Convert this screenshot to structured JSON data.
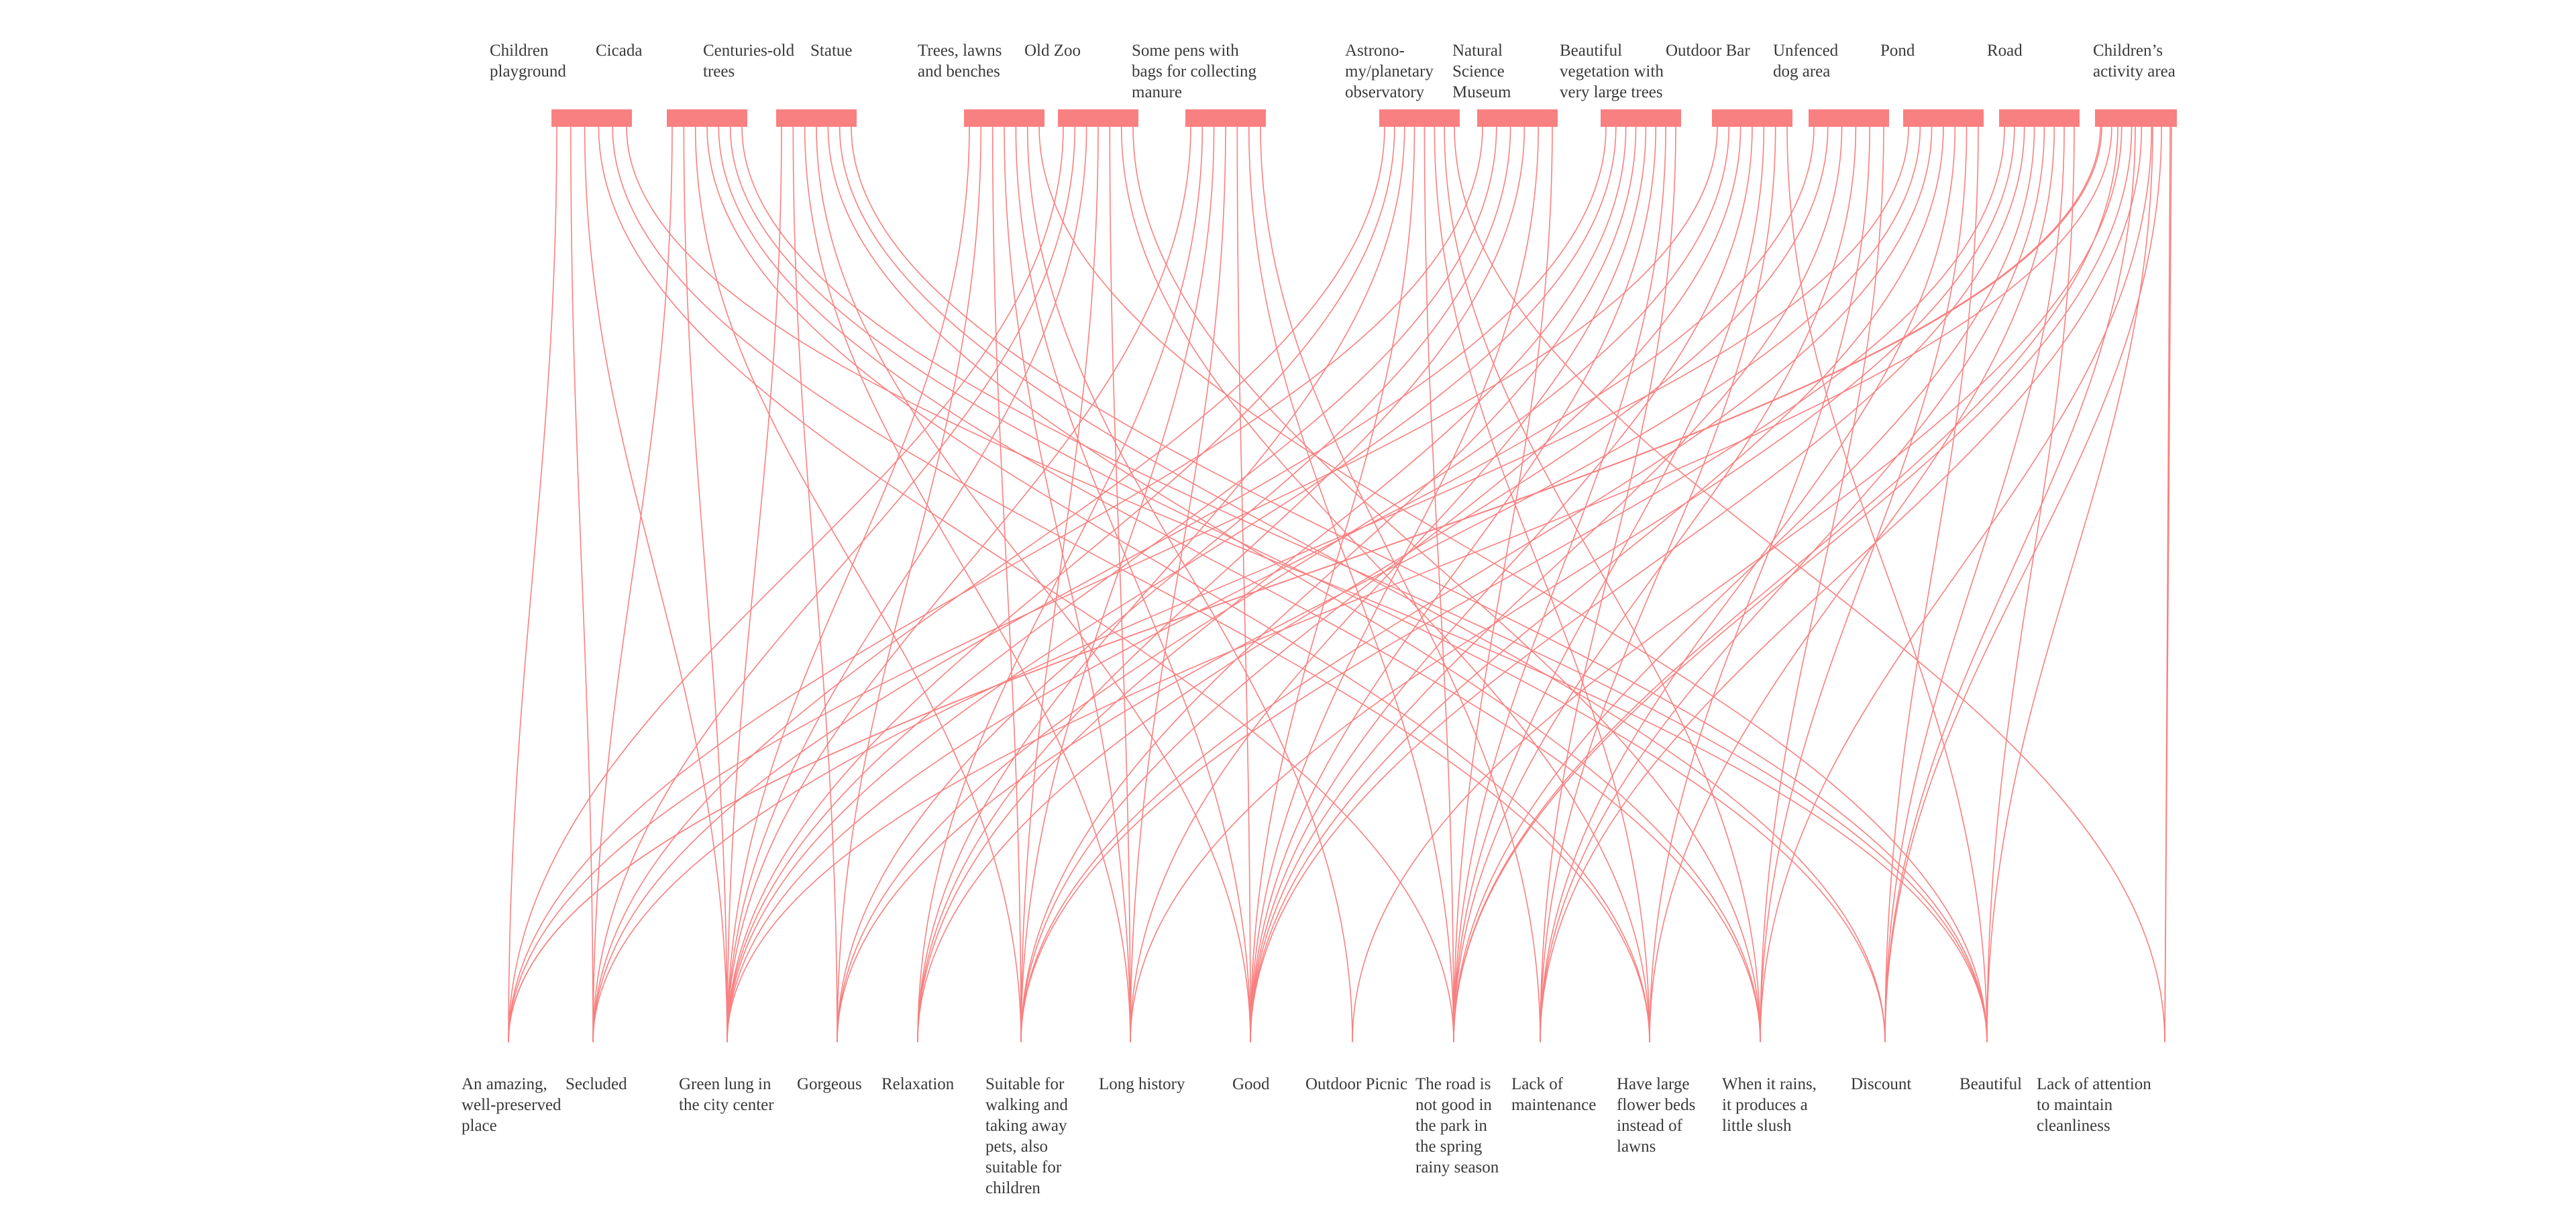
{
  "colors": {
    "accent": "#f98080",
    "text": "#3a3a3a",
    "background": "#ffffff"
  },
  "top_nodes": [
    "Children\nplayground",
    "Cicada",
    "Centuries-old\ntrees",
    "Statue",
    "Trees, lawns\nand benches",
    "Old Zoo",
    "Some pens with\nbags for collecting\nmanure",
    "Astrono-\nmy/planetary\nobservatory",
    "Natural\nScience\nMuseum",
    "Beautiful\nvegetation with\nvery large trees",
    "Outdoor Bar",
    "Unfenced\ndog area",
    "Pond",
    "Road",
    "Children’s\nactivity area"
  ],
  "bottom_nodes": [
    "An amazing,\nwell-preserved\nplace",
    "Secluded",
    "Green lung in\nthe city center",
    "Gorgeous",
    "Relaxation",
    "Suitable for\nwalking and\ntaking away\npets, also\nsuitable for\nchildren",
    "Long history",
    "Good",
    "Outdoor Picnic",
    "The road is\nnot good in\nthe park in\nthe spring\nrainy season",
    "Lack of\nmaintenance",
    "Have large\nflower beds\ninstead of\nlawns",
    "When it rains,\nit produces a\nlittle slush",
    "Discount",
    "Beautiful",
    "Lack of attention\nto maintain\ncleanliness"
  ],
  "links": [
    [
      0,
      0
    ],
    [
      0,
      1
    ],
    [
      0,
      2
    ],
    [
      0,
      9
    ],
    [
      0,
      11
    ],
    [
      0,
      14
    ],
    [
      1,
      1
    ],
    [
      1,
      2
    ],
    [
      1,
      5
    ],
    [
      1,
      11
    ],
    [
      1,
      12
    ],
    [
      1,
      13
    ],
    [
      1,
      14
    ],
    [
      2,
      2
    ],
    [
      2,
      3
    ],
    [
      2,
      6
    ],
    [
      2,
      7
    ],
    [
      2,
      12
    ],
    [
      2,
      13
    ],
    [
      2,
      14
    ],
    [
      3,
      2
    ],
    [
      3,
      3
    ],
    [
      3,
      5
    ],
    [
      3,
      6
    ],
    [
      3,
      7
    ],
    [
      3,
      8
    ],
    [
      3,
      14
    ],
    [
      4,
      0
    ],
    [
      4,
      1
    ],
    [
      4,
      2
    ],
    [
      4,
      5
    ],
    [
      4,
      6
    ],
    [
      4,
      11
    ],
    [
      4,
      12
    ],
    [
      5,
      2
    ],
    [
      5,
      4
    ],
    [
      5,
      5
    ],
    [
      5,
      6
    ],
    [
      5,
      7
    ],
    [
      5,
      9
    ],
    [
      5,
      10
    ],
    [
      6,
      1
    ],
    [
      6,
      2
    ],
    [
      6,
      4
    ],
    [
      6,
      7
    ],
    [
      6,
      9
    ],
    [
      6,
      11
    ],
    [
      6,
      12
    ],
    [
      6,
      15
    ],
    [
      7,
      0
    ],
    [
      7,
      2
    ],
    [
      7,
      3
    ],
    [
      7,
      4
    ],
    [
      7,
      7
    ],
    [
      7,
      9
    ],
    [
      8,
      1
    ],
    [
      8,
      2
    ],
    [
      8,
      4
    ],
    [
      8,
      5
    ],
    [
      8,
      6
    ],
    [
      8,
      7
    ],
    [
      8,
      9
    ],
    [
      8,
      10
    ],
    [
      9,
      0
    ],
    [
      9,
      3
    ],
    [
      9,
      5
    ],
    [
      9,
      7
    ],
    [
      9,
      9
    ],
    [
      9,
      10
    ],
    [
      9,
      14
    ],
    [
      10,
      2
    ],
    [
      10,
      4
    ],
    [
      10,
      7
    ],
    [
      10,
      9
    ],
    [
      10,
      11
    ],
    [
      10,
      12
    ],
    [
      11,
      1
    ],
    [
      11,
      3
    ],
    [
      11,
      5
    ],
    [
      11,
      7
    ],
    [
      11,
      10
    ],
    [
      11,
      12
    ],
    [
      11,
      13
    ],
    [
      12,
      5
    ],
    [
      12,
      6
    ],
    [
      12,
      7
    ],
    [
      12,
      9
    ],
    [
      12,
      10
    ],
    [
      12,
      11
    ],
    [
      12,
      13
    ],
    [
      12,
      14
    ],
    [
      13,
      0
    ],
    [
      13,
      9
    ],
    [
      13,
      13
    ],
    [
      13,
      14
    ],
    [
      13,
      15
    ],
    [
      14,
      0
    ],
    [
      14,
      2
    ],
    [
      14,
      8
    ],
    [
      14,
      9
    ],
    [
      14,
      10
    ],
    [
      14,
      12
    ],
    [
      14,
      13
    ],
    [
      14,
      15
    ]
  ]
}
